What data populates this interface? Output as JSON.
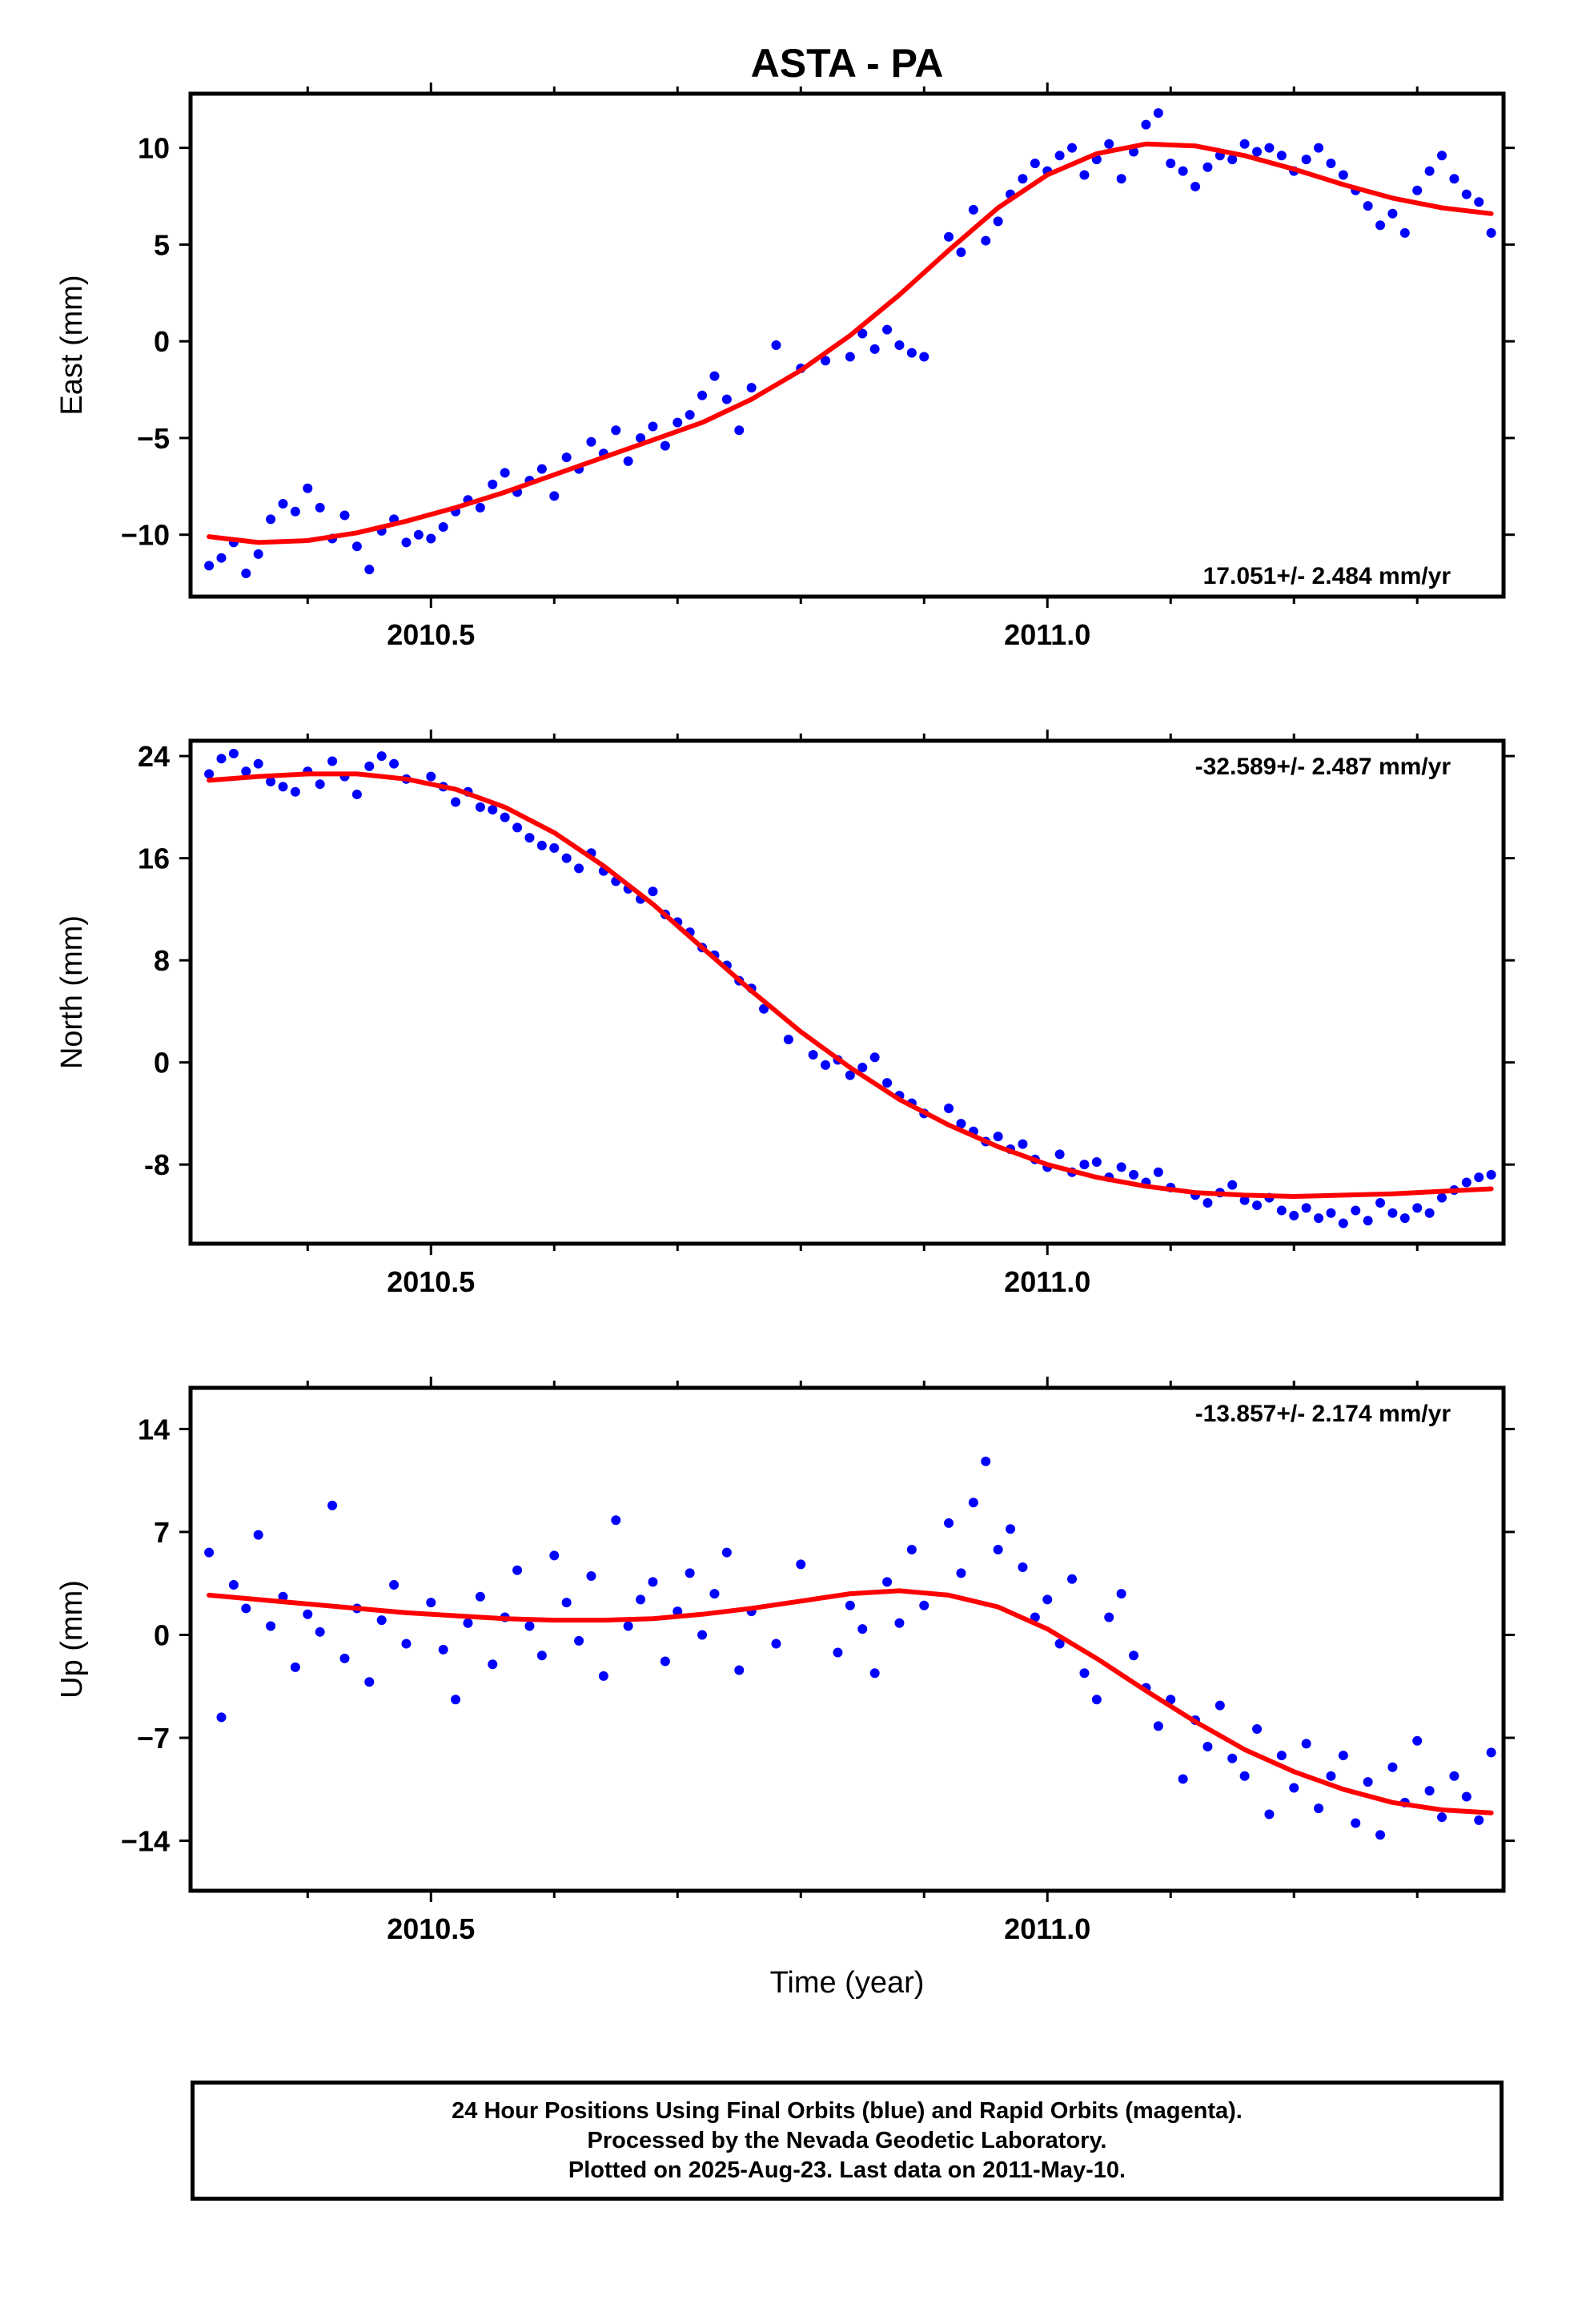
{
  "title": "ASTA - PA",
  "x_axis_label": "Time (year)",
  "footer": {
    "line1": "24 Hour Positions Using Final Orbits (blue) and Rapid Orbits (magenta).",
    "line2": "Processed by the Nevada Geodetic Laboratory.",
    "line3": "Plotted on 2025-Aug-23. Last data on 2011-May-10."
  },
  "colors": {
    "points": "#0000ff",
    "fit": "#ff0000",
    "frame": "#000000"
  },
  "chart_data": [
    {
      "type": "scatter",
      "ylabel": "East (mm)",
      "rate_label": "17.051+/- 2.484 mm/yr",
      "rate_position": "bottom-right",
      "xlim": [
        2010.305,
        2011.37
      ],
      "ylim": [
        -13.2,
        12.8
      ],
      "yticks": [
        10,
        5,
        0,
        -5,
        -10
      ],
      "ytick_labels": [
        "10",
        "5",
        "0",
        "−5",
        "−10"
      ],
      "xticks": [
        2010.5,
        2011.0
      ],
      "xtick_labels": [
        "2010.5",
        "2011.0"
      ],
      "series": [
        {
          "role": "daily positions",
          "x": [
            2010.32,
            2010.33,
            2010.34,
            2010.35,
            2010.36,
            2010.37,
            2010.38,
            2010.39,
            2010.4,
            2010.41,
            2010.42,
            2010.43,
            2010.44,
            2010.45,
            2010.46,
            2010.47,
            2010.48,
            2010.49,
            2010.5,
            2010.51,
            2010.52,
            2010.53,
            2010.54,
            2010.55,
            2010.56,
            2010.57,
            2010.58,
            2010.59,
            2010.6,
            2010.61,
            2010.62,
            2010.63,
            2010.64,
            2010.65,
            2010.66,
            2010.67,
            2010.68,
            2010.69,
            2010.7,
            2010.71,
            2010.72,
            2010.73,
            2010.74,
            2010.75,
            2010.76,
            2010.78,
            2010.8,
            2010.82,
            2010.84,
            2010.85,
            2010.86,
            2010.87,
            2010.88,
            2010.89,
            2010.9,
            2010.92,
            2010.93,
            2010.94,
            2010.95,
            2010.96,
            2010.97,
            2010.98,
            2010.99,
            2011.0,
            2011.01,
            2011.02,
            2011.03,
            2011.04,
            2011.05,
            2011.06,
            2011.07,
            2011.08,
            2011.09,
            2011.1,
            2011.11,
            2011.12,
            2011.13,
            2011.14,
            2011.15,
            2011.16,
            2011.17,
            2011.18,
            2011.19,
            2011.2,
            2011.21,
            2011.22,
            2011.23,
            2011.24,
            2011.25,
            2011.26,
            2011.27,
            2011.28,
            2011.29,
            2011.3,
            2011.31,
            2011.32,
            2011.33,
            2011.34,
            2011.35,
            2011.36
          ],
          "y": [
            -11.6,
            -11.2,
            -10.4,
            -12.0,
            -11.0,
            -9.2,
            -8.4,
            -8.8,
            -7.6,
            -8.6,
            -10.2,
            -9.0,
            -10.6,
            -11.8,
            -9.8,
            -9.2,
            -10.4,
            -10.0,
            -10.2,
            -9.6,
            -8.8,
            -8.2,
            -8.6,
            -7.4,
            -6.8,
            -7.8,
            -7.2,
            -6.6,
            -8.0,
            -6.0,
            -6.6,
            -5.2,
            -5.8,
            -4.6,
            -6.2,
            -5.0,
            -4.4,
            -5.4,
            -4.2,
            -3.8,
            -2.8,
            -1.8,
            -3.0,
            -4.6,
            -2.4,
            -0.2,
            -1.4,
            -1.0,
            -0.8,
            0.4,
            -0.4,
            0.6,
            -0.2,
            -0.6,
            -0.8,
            5.4,
            4.6,
            6.8,
            5.2,
            6.2,
            7.6,
            8.4,
            9.2,
            8.8,
            9.6,
            10.0,
            8.6,
            9.4,
            10.2,
            8.4,
            9.8,
            11.2,
            11.8,
            9.2,
            8.8,
            8.0,
            9.0,
            9.6,
            9.4,
            10.2,
            9.8,
            10.0,
            9.6,
            8.8,
            9.4,
            10.0,
            9.2,
            8.6,
            7.8,
            7.0,
            6.0,
            6.6,
            5.6,
            7.8,
            8.8,
            9.6,
            8.4,
            7.6,
            7.2,
            5.6
          ]
        },
        {
          "role": "model fit",
          "x": [
            2010.32,
            2010.36,
            2010.4,
            2010.44,
            2010.48,
            2010.52,
            2010.56,
            2010.6,
            2010.64,
            2010.68,
            2010.72,
            2010.76,
            2010.8,
            2010.84,
            2010.88,
            2010.92,
            2010.96,
            2011.0,
            2011.04,
            2011.08,
            2011.12,
            2011.16,
            2011.2,
            2011.24,
            2011.28,
            2011.32,
            2011.36
          ],
          "y": [
            -10.1,
            -10.4,
            -10.3,
            -9.9,
            -9.3,
            -8.6,
            -7.8,
            -6.9,
            -6.0,
            -5.1,
            -4.2,
            -3.0,
            -1.5,
            0.3,
            2.4,
            4.7,
            6.9,
            8.6,
            9.7,
            10.2,
            10.1,
            9.6,
            8.9,
            8.1,
            7.4,
            6.9,
            6.6
          ]
        }
      ]
    },
    {
      "type": "scatter",
      "ylabel": "North (mm)",
      "rate_label": "-32.589+/- 2.487 mm/yr",
      "rate_position": "top-right",
      "xlim": [
        2010.305,
        2011.37
      ],
      "ylim": [
        -14.2,
        25.2
      ],
      "yticks": [
        24,
        16,
        8,
        0,
        -8
      ],
      "ytick_labels": [
        "24",
        "16",
        "8",
        "0",
        "-8"
      ],
      "xticks": [
        2010.5,
        2011.0
      ],
      "xtick_labels": [
        "2010.5",
        "2011.0"
      ],
      "series": [
        {
          "role": "daily positions",
          "x": [
            2010.32,
            2010.33,
            2010.34,
            2010.35,
            2010.36,
            2010.37,
            2010.38,
            2010.39,
            2010.4,
            2010.41,
            2010.42,
            2010.43,
            2010.44,
            2010.45,
            2010.46,
            2010.47,
            2010.48,
            2010.5,
            2010.51,
            2010.52,
            2010.53,
            2010.54,
            2010.55,
            2010.56,
            2010.57,
            2010.58,
            2010.59,
            2010.6,
            2010.61,
            2010.62,
            2010.63,
            2010.64,
            2010.65,
            2010.66,
            2010.67,
            2010.68,
            2010.69,
            2010.7,
            2010.71,
            2010.72,
            2010.73,
            2010.74,
            2010.75,
            2010.76,
            2010.77,
            2010.79,
            2010.81,
            2010.82,
            2010.83,
            2010.84,
            2010.85,
            2010.86,
            2010.87,
            2010.88,
            2010.89,
            2010.9,
            2010.92,
            2010.93,
            2010.94,
            2010.95,
            2010.96,
            2010.97,
            2010.98,
            2010.99,
            2011.0,
            2011.01,
            2011.02,
            2011.03,
            2011.04,
            2011.05,
            2011.06,
            2011.07,
            2011.08,
            2011.09,
            2011.1,
            2011.12,
            2011.13,
            2011.14,
            2011.15,
            2011.16,
            2011.17,
            2011.18,
            2011.19,
            2011.2,
            2011.21,
            2011.22,
            2011.23,
            2011.24,
            2011.25,
            2011.26,
            2011.27,
            2011.28,
            2011.29,
            2011.3,
            2011.31,
            2011.32,
            2011.33,
            2011.34,
            2011.35,
            2011.36
          ],
          "y": [
            22.6,
            23.8,
            24.2,
            22.8,
            23.4,
            22.0,
            21.6,
            21.2,
            22.8,
            21.8,
            23.6,
            22.4,
            21.0,
            23.2,
            24.0,
            23.4,
            22.2,
            22.4,
            21.6,
            20.4,
            21.2,
            20.0,
            19.8,
            19.2,
            18.4,
            17.6,
            17.0,
            16.8,
            16.0,
            15.2,
            16.4,
            15.0,
            14.2,
            13.6,
            12.8,
            13.4,
            11.6,
            11.0,
            10.2,
            9.0,
            8.4,
            7.6,
            6.4,
            5.8,
            4.2,
            1.8,
            0.6,
            -0.2,
            0.2,
            -1.0,
            -0.4,
            0.4,
            -1.6,
            -2.6,
            -3.2,
            -4.0,
            -3.6,
            -4.8,
            -5.4,
            -6.2,
            -5.8,
            -6.8,
            -6.4,
            -7.6,
            -8.2,
            -7.2,
            -8.6,
            -8.0,
            -7.8,
            -9.0,
            -8.2,
            -8.8,
            -9.4,
            -8.6,
            -9.8,
            -10.4,
            -11.0,
            -10.2,
            -9.6,
            -10.8,
            -11.2,
            -10.6,
            -11.6,
            -12.0,
            -11.4,
            -12.2,
            -11.8,
            -12.6,
            -11.6,
            -12.4,
            -11.0,
            -11.8,
            -12.2,
            -11.4,
            -11.8,
            -10.6,
            -10.0,
            -9.4,
            -9.0,
            -8.8
          ]
        },
        {
          "role": "model fit",
          "x": [
            2010.32,
            2010.36,
            2010.4,
            2010.44,
            2010.48,
            2010.52,
            2010.56,
            2010.6,
            2010.64,
            2010.68,
            2010.72,
            2010.76,
            2010.8,
            2010.84,
            2010.88,
            2010.92,
            2010.96,
            2011.0,
            2011.04,
            2011.08,
            2011.12,
            2011.16,
            2011.2,
            2011.24,
            2011.28,
            2011.32,
            2011.36
          ],
          "y": [
            22.1,
            22.4,
            22.6,
            22.6,
            22.2,
            21.4,
            20.0,
            18.0,
            15.4,
            12.4,
            9.0,
            5.6,
            2.4,
            -0.4,
            -2.9,
            -4.9,
            -6.6,
            -8.0,
            -9.0,
            -9.7,
            -10.2,
            -10.4,
            -10.5,
            -10.4,
            -10.3,
            -10.1,
            -9.9
          ]
        }
      ]
    },
    {
      "type": "scatter",
      "ylabel": "Up (mm)",
      "rate_label": "-13.857+/- 2.174 mm/yr",
      "rate_position": "top-right",
      "xlim": [
        2010.305,
        2011.37
      ],
      "ylim": [
        -17.4,
        16.8
      ],
      "yticks": [
        14,
        7,
        0,
        -7,
        -14
      ],
      "ytick_labels": [
        "14",
        "7",
        "0",
        "−7",
        "−14"
      ],
      "xticks": [
        2010.5,
        2011.0
      ],
      "xtick_labels": [
        "2010.5",
        "2011.0"
      ],
      "series": [
        {
          "role": "daily positions",
          "x": [
            2010.32,
            2010.33,
            2010.34,
            2010.35,
            2010.36,
            2010.37,
            2010.38,
            2010.39,
            2010.4,
            2010.41,
            2010.42,
            2010.43,
            2010.44,
            2010.45,
            2010.46,
            2010.47,
            2010.48,
            2010.5,
            2010.51,
            2010.52,
            2010.53,
            2010.54,
            2010.55,
            2010.56,
            2010.57,
            2010.58,
            2010.59,
            2010.6,
            2010.61,
            2010.62,
            2010.63,
            2010.64,
            2010.65,
            2010.66,
            2010.67,
            2010.68,
            2010.69,
            2010.7,
            2010.71,
            2010.72,
            2010.73,
            2010.74,
            2010.75,
            2010.76,
            2010.78,
            2010.8,
            2010.83,
            2010.84,
            2010.85,
            2010.86,
            2010.87,
            2010.88,
            2010.89,
            2010.9,
            2010.92,
            2010.93,
            2010.94,
            2010.95,
            2010.96,
            2010.97,
            2010.98,
            2010.99,
            2011.0,
            2011.01,
            2011.02,
            2011.03,
            2011.04,
            2011.05,
            2011.06,
            2011.07,
            2011.08,
            2011.09,
            2011.1,
            2011.11,
            2011.12,
            2011.13,
            2011.14,
            2011.15,
            2011.16,
            2011.17,
            2011.18,
            2011.19,
            2011.2,
            2011.21,
            2011.22,
            2011.23,
            2011.24,
            2011.25,
            2011.26,
            2011.27,
            2011.28,
            2011.29,
            2011.3,
            2011.31,
            2011.32,
            2011.33,
            2011.34,
            2011.35,
            2011.36
          ],
          "y": [
            5.6,
            -5.6,
            3.4,
            1.8,
            6.8,
            0.6,
            2.6,
            -2.2,
            1.4,
            0.2,
            8.8,
            -1.6,
            1.8,
            -3.2,
            1.0,
            3.4,
            -0.6,
            2.2,
            -1.0,
            -4.4,
            0.8,
            2.6,
            -2.0,
            1.2,
            4.4,
            0.6,
            -1.4,
            5.4,
            2.2,
            -0.4,
            4.0,
            -2.8,
            7.8,
            0.6,
            2.4,
            3.6,
            -1.8,
            1.6,
            4.2,
            0.0,
            2.8,
            5.6,
            -2.4,
            1.6,
            -0.6,
            4.8,
            -1.2,
            2.0,
            0.4,
            -2.6,
            3.6,
            0.8,
            5.8,
            2.0,
            7.6,
            4.2,
            9.0,
            11.8,
            5.8,
            7.2,
            4.6,
            1.2,
            2.4,
            -0.6,
            3.8,
            -2.6,
            -4.4,
            1.2,
            2.8,
            -1.4,
            -3.6,
            -6.2,
            -4.4,
            -9.8,
            -5.8,
            -7.6,
            -4.8,
            -8.4,
            -9.6,
            -6.4,
            -12.2,
            -8.2,
            -10.4,
            -7.4,
            -11.8,
            -9.6,
            -8.2,
            -12.8,
            -10.0,
            -13.6,
            -9.0,
            -11.4,
            -7.2,
            -10.6,
            -12.4,
            -9.6,
            -11.0,
            -12.6,
            -8.0
          ]
        },
        {
          "role": "model fit",
          "x": [
            2010.32,
            2010.36,
            2010.4,
            2010.44,
            2010.48,
            2010.52,
            2010.56,
            2010.6,
            2010.64,
            2010.68,
            2010.72,
            2010.76,
            2010.8,
            2010.84,
            2010.88,
            2010.92,
            2010.96,
            2011.0,
            2011.04,
            2011.08,
            2011.12,
            2011.16,
            2011.2,
            2011.24,
            2011.28,
            2011.32,
            2011.36
          ],
          "y": [
            2.7,
            2.4,
            2.1,
            1.8,
            1.5,
            1.3,
            1.1,
            1.0,
            1.0,
            1.1,
            1.4,
            1.8,
            2.3,
            2.8,
            3.0,
            2.7,
            1.9,
            0.4,
            -1.6,
            -3.8,
            -5.9,
            -7.8,
            -9.3,
            -10.5,
            -11.4,
            -11.9,
            -12.1
          ]
        }
      ]
    }
  ]
}
